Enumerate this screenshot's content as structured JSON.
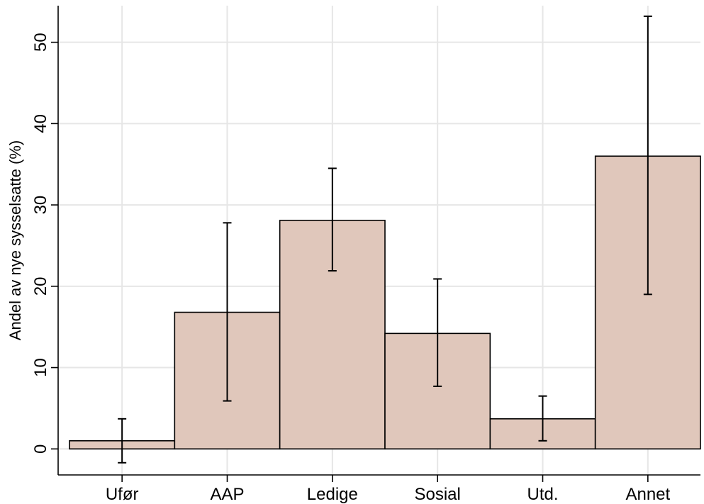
{
  "chart_data": {
    "type": "bar",
    "title": "",
    "xlabel": "",
    "ylabel": "Andel av nye sysselsatte (%)",
    "categories": [
      "Ufør",
      "AAP",
      "Ledige",
      "Sosial",
      "Utd.",
      "Annet"
    ],
    "series": [
      {
        "values": [
          1.0,
          16.8,
          28.1,
          14.2,
          3.7,
          36.0
        ],
        "error_low": [
          -1.7,
          5.9,
          21.9,
          7.7,
          1.0,
          19.0
        ],
        "error_high": [
          3.7,
          27.8,
          34.5,
          20.9,
          6.5,
          53.2
        ]
      }
    ],
    "yticks": [
      0,
      10,
      20,
      30,
      40,
      50
    ],
    "ylim": [
      -3.2,
      54.5
    ],
    "grid": true,
    "legend": "none",
    "colors": {
      "bar_fill": "#e0c7bb",
      "bar_stroke": "#000000",
      "grid": "#e6e6e6"
    }
  }
}
